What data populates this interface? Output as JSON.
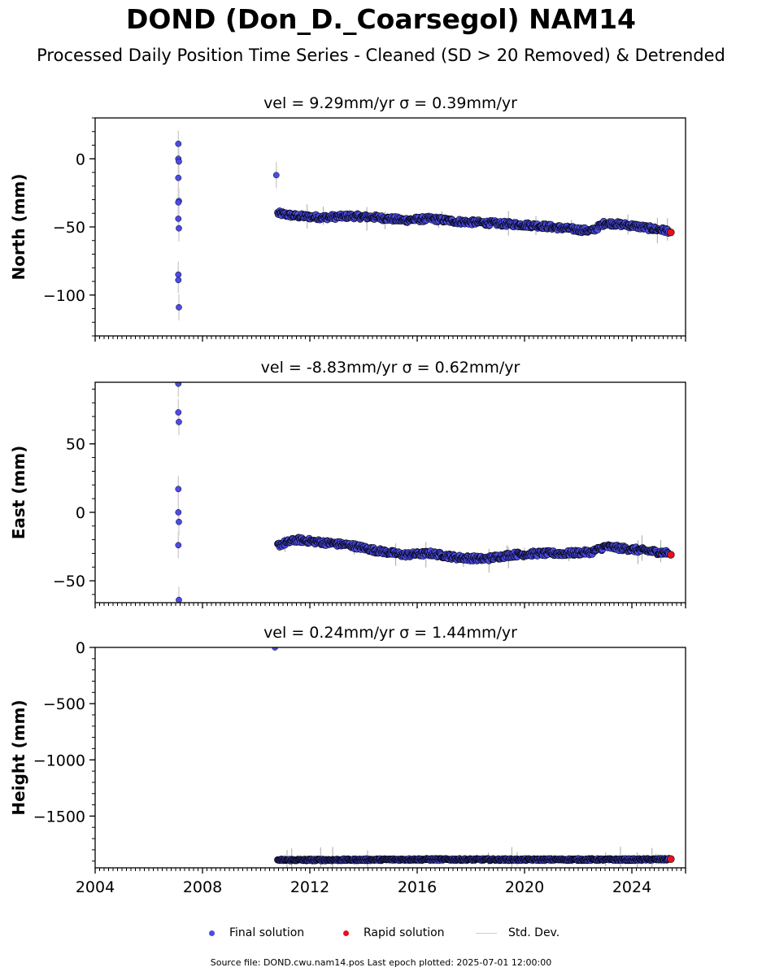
{
  "title": "DOND (Don_D._Coarsegol) NAM14",
  "subtitle": "Processed Daily Position Time Series - Cleaned (SD > 20 Removed) & Detrended",
  "footer": "Source file: DOND.cwu.nam14.pos  Last epoch plotted: 2025-07-01 12:00:00",
  "colors": {
    "final": "#4b4be8",
    "rapid": "#e8101a",
    "stddev": "#cfcfcf",
    "edge": "#000000"
  },
  "legend": [
    {
      "name": "Final solution",
      "marker": "dot",
      "color": "#4b4be8"
    },
    {
      "name": "Rapid solution",
      "marker": "dot",
      "color": "#e8101a"
    },
    {
      "name": "Std. Dev.",
      "marker": "line",
      "color": "#cfcfcf"
    }
  ],
  "chart_data": [
    {
      "type": "scatter",
      "title": "vel = 9.29mm/yr   σ = 0.39mm/yr",
      "ylabel": "North (mm)",
      "xlim": [
        2004,
        2026
      ],
      "ylim": [
        -130,
        30
      ],
      "xticks": [
        2004,
        2008,
        2012,
        2016,
        2020,
        2024
      ],
      "xtick_labels": [],
      "yticks": [
        0,
        -50,
        -100
      ],
      "ytick_labels": [
        "0",
        "−50",
        "−100"
      ],
      "early_points": [
        {
          "x": 2007.1,
          "y": 11
        },
        {
          "x": 2007.1,
          "y": 0
        },
        {
          "x": 2007.12,
          "y": -2
        },
        {
          "x": 2007.1,
          "y": -14
        },
        {
          "x": 2007.12,
          "y": -31
        },
        {
          "x": 2007.1,
          "y": -32
        },
        {
          "x": 2007.1,
          "y": -44
        },
        {
          "x": 2007.12,
          "y": -51
        },
        {
          "x": 2007.1,
          "y": -85
        },
        {
          "x": 2007.1,
          "y": -89
        },
        {
          "x": 2007.12,
          "y": -109
        },
        {
          "x": 2010.75,
          "y": -12
        }
      ],
      "trend": {
        "x": [
          2010.8,
          2011.5,
          2012.5,
          2013.5,
          2014.5,
          2015.5,
          2016.5,
          2017.5,
          2018.5,
          2019.5,
          2020.5,
          2021.5,
          2022.5,
          2023,
          2024,
          2025,
          2025.5
        ],
        "y": [
          -40,
          -42,
          -43,
          -42,
          -43,
          -45,
          -44,
          -46,
          -47,
          -48,
          -49,
          -51,
          -53,
          -47,
          -49,
          -52,
          -53
        ]
      },
      "rapid": [
        {
          "x": 2025.45,
          "y": -54
        }
      ]
    },
    {
      "type": "scatter",
      "title": "vel = -8.83mm/yr   σ = 0.62mm/yr",
      "ylabel": "East (mm)",
      "xlim": [
        2004,
        2026
      ],
      "ylim": [
        -66,
        95
      ],
      "xticks": [
        2004,
        2008,
        2012,
        2016,
        2020,
        2024
      ],
      "xtick_labels": [],
      "yticks": [
        50,
        0,
        -50
      ],
      "ytick_labels": [
        "50",
        "0",
        "−50"
      ],
      "early_points": [
        {
          "x": 2007.1,
          "y": 94
        },
        {
          "x": 2007.1,
          "y": 73
        },
        {
          "x": 2007.12,
          "y": 66
        },
        {
          "x": 2007.1,
          "y": 17
        },
        {
          "x": 2007.1,
          "y": 0
        },
        {
          "x": 2007.12,
          "y": -7
        },
        {
          "x": 2007.1,
          "y": -24
        },
        {
          "x": 2007.12,
          "y": -64
        }
      ],
      "trend": {
        "x": [
          2010.8,
          2011.5,
          2012.5,
          2013.5,
          2014.5,
          2015.5,
          2016.5,
          2017.5,
          2018.5,
          2019.5,
          2020.5,
          2021.5,
          2022.5,
          2023,
          2024,
          2025,
          2025.5
        ],
        "y": [
          -24,
          -20,
          -22,
          -24,
          -28,
          -31,
          -30,
          -33,
          -34,
          -31,
          -30,
          -30,
          -29,
          -25,
          -27,
          -29,
          -30
        ]
      },
      "rapid": [
        {
          "x": 2025.45,
          "y": -31
        }
      ]
    },
    {
      "type": "scatter",
      "title": "vel = 0.24mm/yr   σ = 1.44mm/yr",
      "ylabel": "Height (mm)",
      "xlim": [
        2004,
        2026
      ],
      "ylim": [
        -1960,
        0
      ],
      "xticks": [
        2004,
        2008,
        2012,
        2016,
        2020,
        2024
      ],
      "xtick_labels": [
        "2004",
        "2008",
        "2012",
        "2016",
        "2020",
        "2024"
      ],
      "yticks": [
        0,
        -500,
        -1000,
        -1500
      ],
      "ytick_labels": [
        "0",
        "−500",
        "−1000",
        "−1500"
      ],
      "early_points": [
        {
          "x": 2010.7,
          "y": 0
        }
      ],
      "trend": {
        "x": [
          2010.8,
          2012,
          2014,
          2016,
          2018,
          2020,
          2022,
          2024,
          2025.5
        ],
        "y": [
          -1890,
          -1890,
          -1888,
          -1885,
          -1886,
          -1887,
          -1886,
          -1887,
          -1884
        ]
      },
      "rapid": [
        {
          "x": 2025.45,
          "y": -1882
        }
      ]
    }
  ]
}
